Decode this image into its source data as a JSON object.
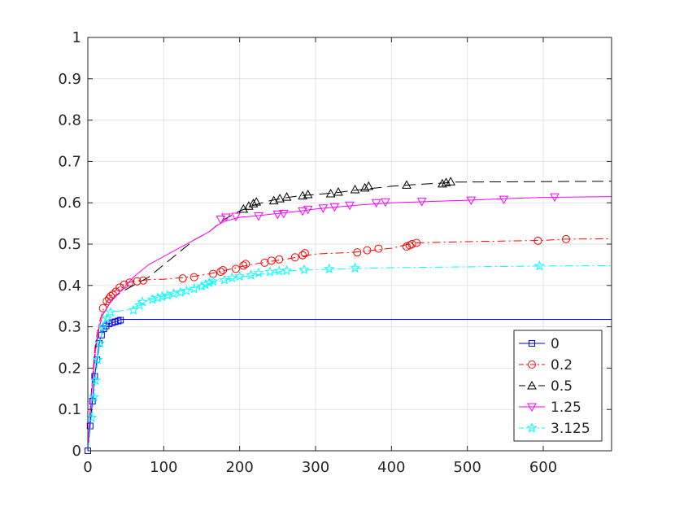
{
  "chart_data": {
    "type": "line",
    "title": "",
    "xlabel": "",
    "ylabel": "",
    "xlim": [
      0,
      690
    ],
    "ylim": [
      0,
      1
    ],
    "xticks": [
      "0",
      "100",
      "200",
      "300",
      "400",
      "500",
      "600"
    ],
    "yticks": [
      "0",
      "0.1",
      "0.2",
      "0.3",
      "0.4",
      "0.5",
      "0.6",
      "0.7",
      "0.8",
      "0.9",
      "1"
    ],
    "grid": true,
    "legend_position": "bottom-right",
    "series": [
      {
        "name": "0",
        "color": "#0000ff",
        "marker": "square",
        "dash": "solid",
        "x": [
          0,
          3,
          6,
          9,
          12,
          15,
          18,
          21,
          24,
          28,
          32,
          36,
          40,
          43,
          690
        ],
        "y": [
          0.0,
          0.06,
          0.12,
          0.18,
          0.22,
          0.26,
          0.28,
          0.295,
          0.302,
          0.307,
          0.31,
          0.312,
          0.314,
          0.318,
          0.318
        ],
        "markers": [
          [
            0,
            0.0
          ],
          [
            3,
            0.06
          ],
          [
            6,
            0.12
          ],
          [
            9,
            0.18
          ],
          [
            12,
            0.22
          ],
          [
            15,
            0.26
          ],
          [
            18,
            0.28
          ],
          [
            21,
            0.295
          ],
          [
            24,
            0.302
          ],
          [
            28,
            0.307
          ],
          [
            32,
            0.31
          ],
          [
            36,
            0.312
          ],
          [
            40,
            0.314
          ],
          [
            43,
            0.316
          ]
        ]
      },
      {
        "name": "0.2",
        "color": "#ff0000",
        "marker": "circle",
        "dash": "dashdot",
        "x": [
          0,
          5,
          10,
          15,
          20,
          25,
          30,
          35,
          40,
          50,
          60,
          70,
          80,
          100,
          120,
          140,
          160,
          180,
          200,
          220,
          240,
          260,
          280,
          300,
          350,
          400,
          430,
          500,
          600,
          630,
          690
        ],
        "y": [
          0.0,
          0.15,
          0.26,
          0.31,
          0.34,
          0.36,
          0.375,
          0.385,
          0.395,
          0.405,
          0.41,
          0.412,
          0.414,
          0.415,
          0.418,
          0.422,
          0.428,
          0.436,
          0.445,
          0.452,
          0.458,
          0.463,
          0.47,
          0.476,
          0.48,
          0.49,
          0.503,
          0.506,
          0.509,
          0.512,
          0.513
        ],
        "markers": [
          [
            20,
            0.345
          ],
          [
            25,
            0.362
          ],
          [
            28,
            0.368
          ],
          [
            30,
            0.374
          ],
          [
            33,
            0.378
          ],
          [
            37,
            0.385
          ],
          [
            42,
            0.395
          ],
          [
            48,
            0.402
          ],
          [
            55,
            0.407
          ],
          [
            65,
            0.41
          ],
          [
            73,
            0.412
          ],
          [
            125,
            0.417
          ],
          [
            140,
            0.42
          ],
          [
            165,
            0.428
          ],
          [
            175,
            0.433
          ],
          [
            178,
            0.437
          ],
          [
            195,
            0.44
          ],
          [
            205,
            0.448
          ],
          [
            208,
            0.452
          ],
          [
            233,
            0.455
          ],
          [
            242,
            0.46
          ],
          [
            252,
            0.463
          ],
          [
            273,
            0.468
          ],
          [
            283,
            0.473
          ],
          [
            286,
            0.478
          ],
          [
            355,
            0.48
          ],
          [
            368,
            0.485
          ],
          [
            383,
            0.489
          ],
          [
            420,
            0.494
          ],
          [
            424,
            0.497
          ],
          [
            427,
            0.5
          ],
          [
            433,
            0.503
          ],
          [
            593,
            0.508
          ],
          [
            630,
            0.512
          ]
        ]
      },
      {
        "name": "0.5",
        "color": "#000000",
        "marker": "triangle-up",
        "dash": "dashed",
        "x": [
          0,
          5,
          10,
          15,
          20,
          30,
          40,
          50,
          60,
          70,
          80,
          100,
          120,
          140,
          160,
          180,
          200,
          220,
          240,
          260,
          280,
          300,
          330,
          360,
          400,
          430,
          470,
          480,
          690
        ],
        "y": [
          0.0,
          0.15,
          0.25,
          0.3,
          0.33,
          0.36,
          0.38,
          0.39,
          0.4,
          0.41,
          0.42,
          0.45,
          0.48,
          0.51,
          0.53,
          0.56,
          0.58,
          0.595,
          0.605,
          0.612,
          0.617,
          0.62,
          0.625,
          0.632,
          0.64,
          0.644,
          0.648,
          0.65,
          0.652
        ],
        "markers": [
          [
            205,
            0.585
          ],
          [
            212,
            0.592
          ],
          [
            218,
            0.598
          ],
          [
            222,
            0.602
          ],
          [
            245,
            0.605
          ],
          [
            253,
            0.61
          ],
          [
            262,
            0.614
          ],
          [
            283,
            0.617
          ],
          [
            290,
            0.62
          ],
          [
            320,
            0.622
          ],
          [
            330,
            0.626
          ],
          [
            352,
            0.632
          ],
          [
            365,
            0.636
          ],
          [
            370,
            0.64
          ],
          [
            420,
            0.643
          ],
          [
            467,
            0.646
          ],
          [
            472,
            0.649
          ],
          [
            478,
            0.651
          ]
        ]
      },
      {
        "name": "1.25",
        "color": "#ff00ff",
        "marker": "triangle-down",
        "dash": "solid",
        "x": [
          0,
          5,
          10,
          15,
          20,
          30,
          40,
          50,
          60,
          70,
          80,
          100,
          120,
          140,
          160,
          170,
          180,
          190,
          200,
          220,
          240,
          260,
          280,
          300,
          330,
          360,
          400,
          450,
          500,
          550,
          600,
          690
        ],
        "y": [
          0.0,
          0.14,
          0.24,
          0.3,
          0.33,
          0.36,
          0.38,
          0.4,
          0.42,
          0.435,
          0.45,
          0.47,
          0.49,
          0.51,
          0.53,
          0.545,
          0.555,
          0.56,
          0.565,
          0.568,
          0.572,
          0.576,
          0.58,
          0.585,
          0.59,
          0.595,
          0.6,
          0.603,
          0.606,
          0.61,
          0.613,
          0.615
        ],
        "markers": [
          [
            175,
            0.56
          ],
          [
            182,
            0.565
          ],
          [
            195,
            0.567
          ],
          [
            225,
            0.568
          ],
          [
            250,
            0.572
          ],
          [
            258,
            0.574
          ],
          [
            283,
            0.58
          ],
          [
            290,
            0.584
          ],
          [
            310,
            0.587
          ],
          [
            325,
            0.59
          ],
          [
            345,
            0.594
          ],
          [
            380,
            0.6
          ],
          [
            392,
            0.602
          ],
          [
            440,
            0.603
          ],
          [
            505,
            0.606
          ],
          [
            548,
            0.608
          ],
          [
            615,
            0.614
          ]
        ]
      },
      {
        "name": "3.125",
        "color": "#00ffff",
        "marker": "star",
        "dash": "dashdot",
        "x": [
          0,
          5,
          10,
          15,
          20,
          25,
          30,
          40,
          50,
          60,
          70,
          80,
          100,
          120,
          140,
          160,
          180,
          200,
          220,
          240,
          260,
          300,
          350,
          400,
          500,
          595,
          690
        ],
        "y": [
          0.0,
          0.08,
          0.17,
          0.25,
          0.3,
          0.325,
          0.335,
          0.338,
          0.34,
          0.345,
          0.355,
          0.365,
          0.375,
          0.385,
          0.395,
          0.405,
          0.413,
          0.42,
          0.425,
          0.43,
          0.435,
          0.438,
          0.441,
          0.443,
          0.445,
          0.447,
          0.448
        ],
        "markers": [
          [
            5,
            0.08
          ],
          [
            8,
            0.13
          ],
          [
            10,
            0.17
          ],
          [
            13,
            0.22
          ],
          [
            16,
            0.26
          ],
          [
            20,
            0.3
          ],
          [
            25,
            0.32
          ],
          [
            30,
            0.335
          ],
          [
            60,
            0.34
          ],
          [
            68,
            0.352
          ],
          [
            72,
            0.36
          ],
          [
            85,
            0.366
          ],
          [
            92,
            0.37
          ],
          [
            98,
            0.373
          ],
          [
            105,
            0.376
          ],
          [
            113,
            0.38
          ],
          [
            122,
            0.383
          ],
          [
            130,
            0.387
          ],
          [
            140,
            0.392
          ],
          [
            150,
            0.398
          ],
          [
            155,
            0.402
          ],
          [
            160,
            0.407
          ],
          [
            165,
            0.41
          ],
          [
            180,
            0.413
          ],
          [
            190,
            0.418
          ],
          [
            200,
            0.422
          ],
          [
            215,
            0.425
          ],
          [
            225,
            0.43
          ],
          [
            240,
            0.433
          ],
          [
            252,
            0.435
          ],
          [
            262,
            0.436
          ],
          [
            285,
            0.438
          ],
          [
            318,
            0.44
          ],
          [
            352,
            0.442
          ],
          [
            595,
            0.447
          ]
        ]
      }
    ]
  }
}
